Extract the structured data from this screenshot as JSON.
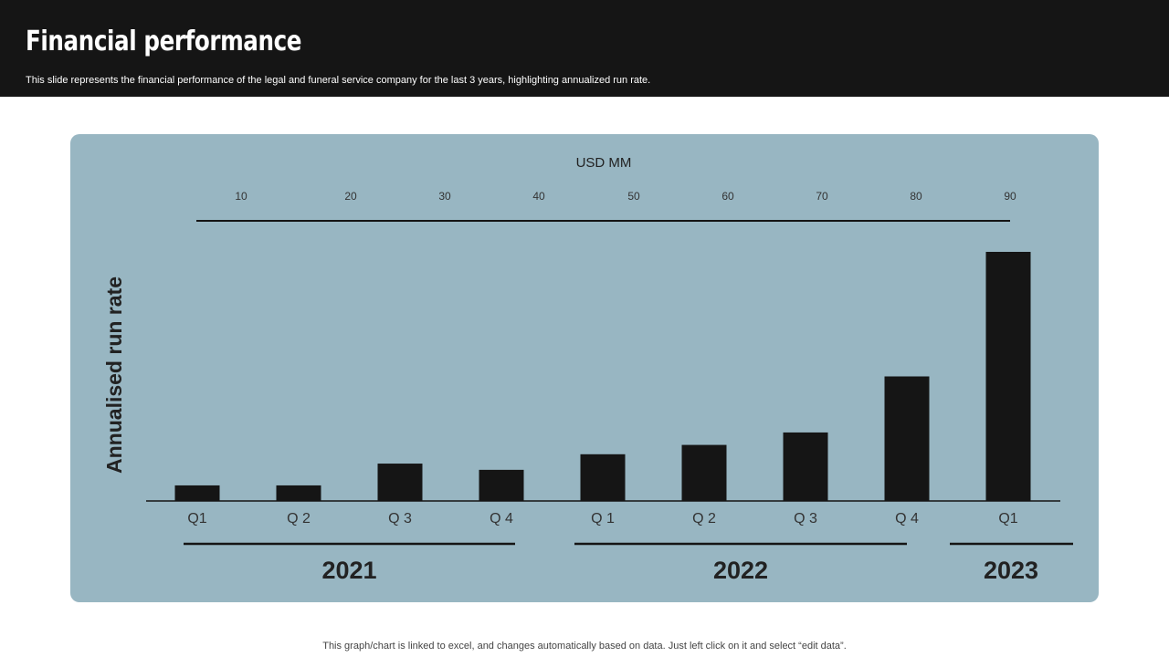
{
  "header": {
    "title": "Financial performance",
    "subtitle": "This slide represents the financial performance of the legal and funeral service company for the last 3 years, highlighting annualized run rate."
  },
  "footer": {
    "note": "This graph/chart is linked to excel,  and changes automatically based on data. Just left click on it and select “edit data”."
  },
  "colors": {
    "header_bg": "#151515",
    "panel_bg": "#98b6c2",
    "bar": "#151515"
  },
  "chart_data": {
    "type": "bar",
    "unit_label": "USD MM",
    "ylabel": "Annualised run rate",
    "top_ticks": [
      "10",
      "20",
      "30",
      "40",
      "50",
      "60",
      "70",
      "80",
      "90"
    ],
    "categories": [
      "Q1",
      "Q 2",
      "Q 3",
      "Q 4",
      "Q 1",
      "Q 2",
      "Q 3",
      "Q 4",
      "Q1"
    ],
    "values": [
      5,
      5,
      12,
      10,
      15,
      18,
      22,
      40,
      80
    ],
    "ylim": [
      0,
      80
    ],
    "groups": [
      {
        "label": "2021",
        "from": 0,
        "to": 3
      },
      {
        "label": "2022",
        "from": 4,
        "to": 7
      },
      {
        "label": "2023",
        "from": 8,
        "to": 8
      }
    ],
    "grid": false
  }
}
